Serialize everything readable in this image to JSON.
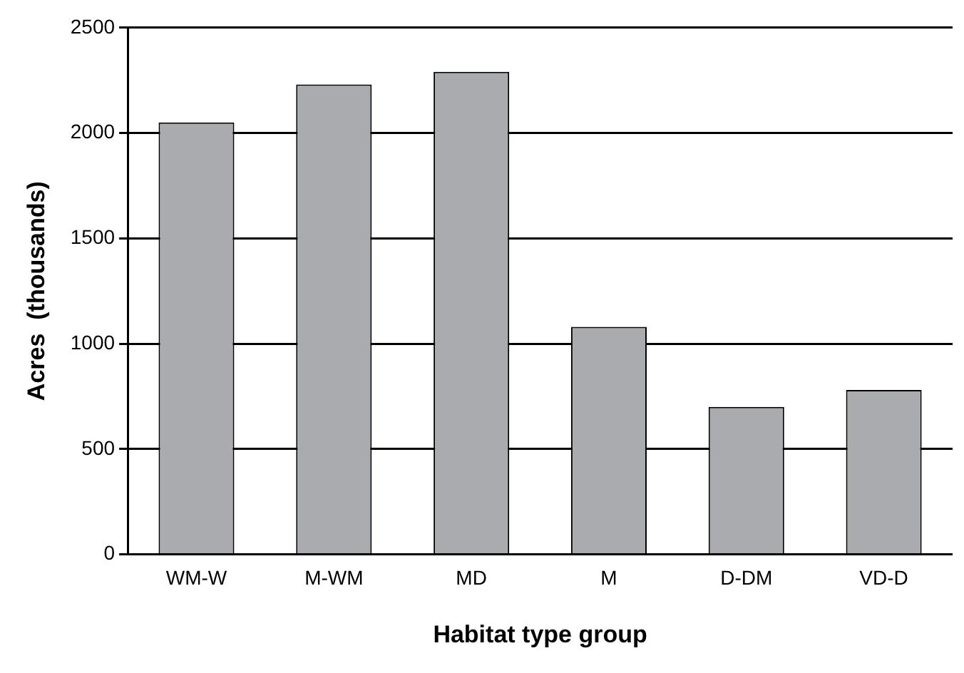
{
  "chart_data": {
    "type": "bar",
    "xlabel": "Habitat type group",
    "ylabel": "Acres  (thousands)",
    "categories": [
      "WM-W",
      "M-WM",
      "MD",
      "M",
      "D-DM",
      "VD-D"
    ],
    "values": [
      2050,
      2230,
      2290,
      1080,
      700,
      780
    ],
    "color": "#aaabae",
    "ylim": [
      0,
      2500
    ],
    "yticks": [
      0,
      500,
      1000,
      1500,
      2000,
      2500
    ],
    "grid": "y"
  }
}
